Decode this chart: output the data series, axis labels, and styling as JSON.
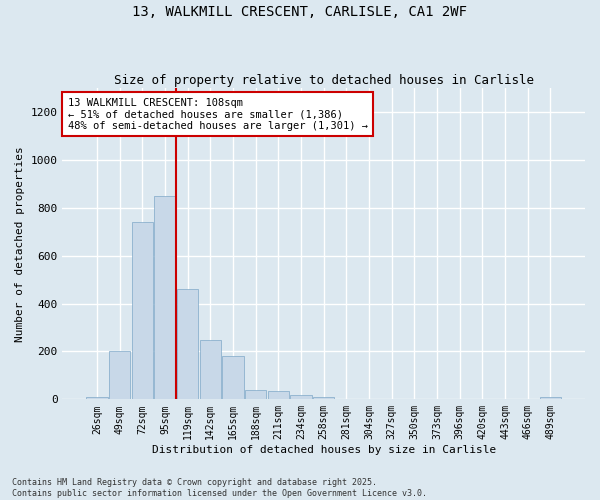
{
  "title_line1": "13, WALKMILL CRESCENT, CARLISLE, CA1 2WF",
  "title_line2": "Size of property relative to detached houses in Carlisle",
  "xlabel": "Distribution of detached houses by size in Carlisle",
  "ylabel": "Number of detached properties",
  "bar_color": "#c8d8e8",
  "bar_edge_color": "#7fa8c8",
  "vline_color": "#cc0000",
  "vline_x_idx": 3,
  "annotation_title": "13 WALKMILL CRESCENT: 108sqm",
  "annotation_line2": "← 51% of detached houses are smaller (1,386)",
  "annotation_line3": "48% of semi-detached houses are larger (1,301) →",
  "annotation_box_color": "#ffffff",
  "annotation_box_edge": "#cc0000",
  "background_color": "#dce8f0",
  "grid_color": "#ffffff",
  "categories": [
    "26sqm",
    "49sqm",
    "72sqm",
    "95sqm",
    "119sqm",
    "142sqm",
    "165sqm",
    "188sqm",
    "211sqm",
    "234sqm",
    "258sqm",
    "281sqm",
    "304sqm",
    "327sqm",
    "350sqm",
    "373sqm",
    "396sqm",
    "420sqm",
    "443sqm",
    "466sqm",
    "489sqm"
  ],
  "values": [
    10,
    200,
    740,
    850,
    460,
    248,
    180,
    38,
    35,
    18,
    10,
    0,
    0,
    0,
    0,
    0,
    0,
    0,
    0,
    0,
    8
  ],
  "ylim": [
    0,
    1300
  ],
  "yticks": [
    0,
    200,
    400,
    600,
    800,
    1000,
    1200
  ],
  "footer_line1": "Contains HM Land Registry data © Crown copyright and database right 2025.",
  "footer_line2": "Contains public sector information licensed under the Open Government Licence v3.0."
}
